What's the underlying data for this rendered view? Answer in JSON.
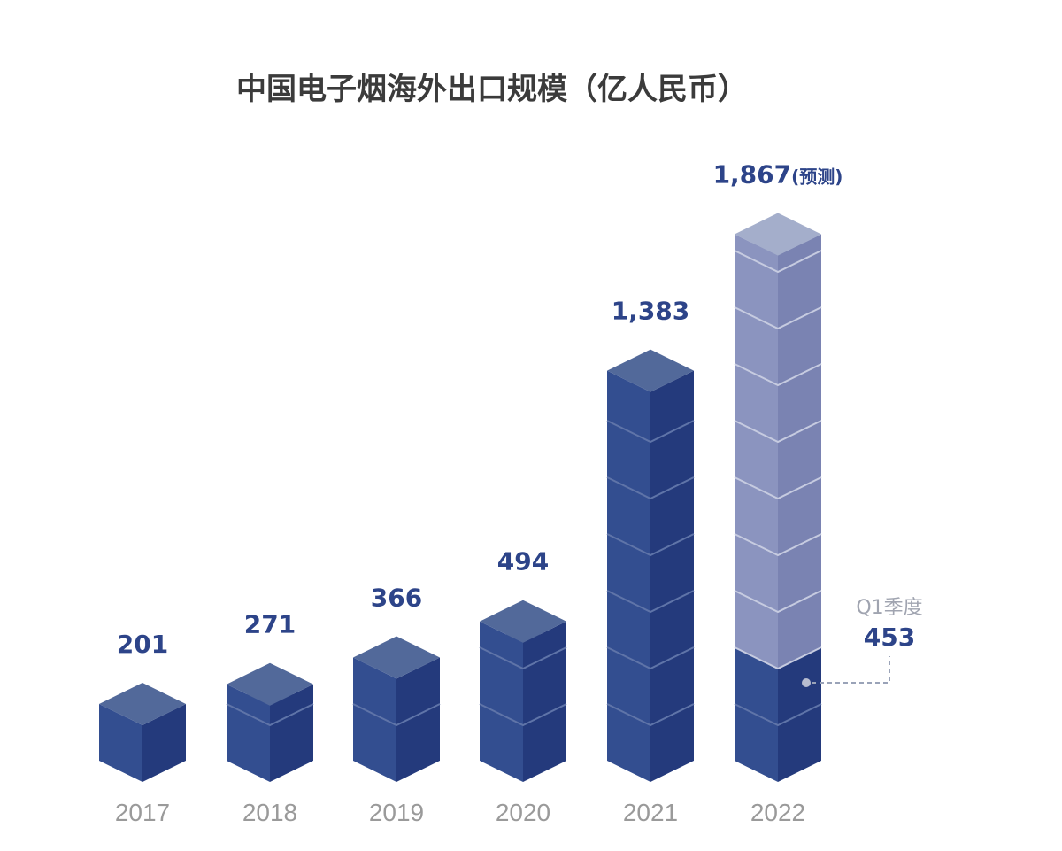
{
  "chart_data": {
    "type": "bar",
    "title": "中国电子烟海外出口规模（亿人民币）",
    "categories": [
      "2017",
      "2018",
      "2019",
      "2020",
      "2021",
      "2022"
    ],
    "series": [
      {
        "values": [
          201,
          271,
          366,
          494,
          1383,
          1867
        ]
      }
    ],
    "data_labels": [
      "201",
      "271",
      "366",
      "494",
      "1,383",
      "1,867"
    ],
    "forecast_suffix": "(预测)",
    "forecast_category": "2022",
    "annotation": {
      "category": "2022",
      "label": "Q1季度",
      "value": 453,
      "value_text": "453"
    },
    "xlabel": "",
    "ylabel": "",
    "grid": false,
    "legend": "none",
    "colors": {
      "cube_top": "#52699a",
      "cube_left": "#334e90",
      "cube_right": "#243a7c",
      "forecast_top": "#a4aecb",
      "forecast_left": "#8b94bf",
      "forecast_right": "#7a83b2",
      "label": "#2d4489",
      "year": "#9a9a9a",
      "title": "#3b3b3b",
      "annotation_line": "#9aa3b8"
    }
  }
}
